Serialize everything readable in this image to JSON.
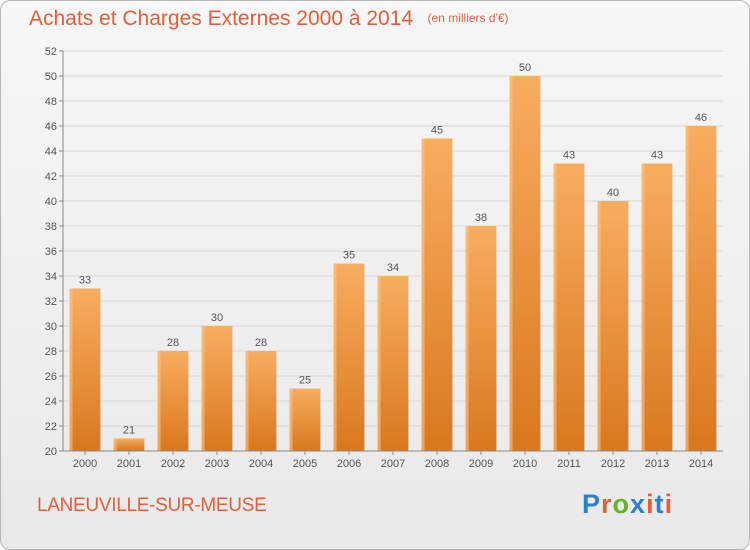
{
  "header": {
    "title": "Achats et Charges Externes 2000 à 2014",
    "unit": "(en milliers d'€)"
  },
  "footer": {
    "commune": "LANEUVILLE-SUR-MEUSE",
    "logo_letters": [
      "P",
      "r",
      "o",
      "x",
      "i",
      "t",
      "i"
    ],
    "logo_colors": [
      "#2f7fd0",
      "#e0603a",
      "#6ab02e",
      "#2f7fd0",
      "#e0603a",
      "#2f7fd0",
      "#e0603a"
    ]
  },
  "chart_data": {
    "type": "bar",
    "categories": [
      "2000",
      "2001",
      "2002",
      "2003",
      "2004",
      "2005",
      "2006",
      "2007",
      "2008",
      "2009",
      "2010",
      "2011",
      "2012",
      "2013",
      "2014"
    ],
    "values": [
      33,
      21,
      28,
      30,
      28,
      25,
      35,
      34,
      45,
      38,
      50,
      43,
      40,
      43,
      46
    ],
    "title": "Achats et Charges Externes 2000 à 2014",
    "ylim": [
      20,
      52
    ],
    "y_ticks": [
      20,
      22,
      24,
      26,
      28,
      30,
      32,
      34,
      36,
      38,
      40,
      42,
      44,
      46,
      48,
      50,
      52
    ],
    "grid": true,
    "bar_color": "#f0902f",
    "bar_color_light": "#f8ad5f",
    "bar_color_dark": "#d9781e",
    "grid_color": "#d6d6d6"
  }
}
